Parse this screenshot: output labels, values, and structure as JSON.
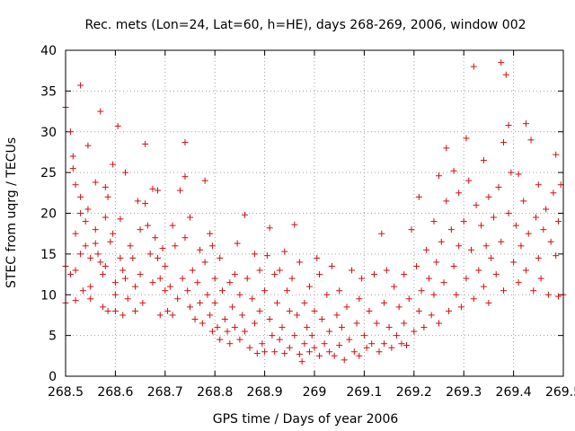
{
  "chart_data": {
    "type": "scatter",
    "title": "Rec. mets (Lon=24, Lat=60, h=HE), days 268-269, 2006, window 002",
    "xlabel": "GPS time / Days of year 2006",
    "ylabel": "STEC from uqrg / TECUs",
    "xlim": [
      268.5,
      269.5
    ],
    "ylim": [
      0,
      40
    ],
    "grid": true,
    "marker": "+",
    "marker_color": "#d01010",
    "x_ticks": [
      {
        "value": 268.5,
        "label": "268.5"
      },
      {
        "value": 268.6,
        "label": "268.6"
      },
      {
        "value": 268.7,
        "label": "268.7"
      },
      {
        "value": 268.8,
        "label": "268.8"
      },
      {
        "value": 268.9,
        "label": "268.9"
      },
      {
        "value": 269.0,
        "label": "269"
      },
      {
        "value": 269.1,
        "label": "269.1"
      },
      {
        "value": 269.2,
        "label": "269.2"
      },
      {
        "value": 269.3,
        "label": "269.3"
      },
      {
        "value": 269.4,
        "label": "269.4"
      },
      {
        "value": 269.5,
        "label": "269.5"
      }
    ],
    "y_ticks": [
      {
        "value": 0,
        "label": "0"
      },
      {
        "value": 5,
        "label": "5"
      },
      {
        "value": 10,
        "label": "10"
      },
      {
        "value": 15,
        "label": "15"
      },
      {
        "value": 20,
        "label": "20"
      },
      {
        "value": 25,
        "label": "25"
      },
      {
        "value": 30,
        "label": "30"
      },
      {
        "value": 35,
        "label": "35"
      },
      {
        "value": 40,
        "label": "40"
      }
    ],
    "series": [
      {
        "name": "STEC",
        "points": [
          [
            268.5,
            33.0
          ],
          [
            268.5,
            13.5
          ],
          [
            268.5,
            9.0
          ],
          [
            268.51,
            30.0
          ],
          [
            268.51,
            12.5
          ],
          [
            268.515,
            27.0
          ],
          [
            268.515,
            25.5
          ],
          [
            268.52,
            23.5
          ],
          [
            268.52,
            17.5
          ],
          [
            268.52,
            13.0
          ],
          [
            268.52,
            9.3
          ],
          [
            268.53,
            35.7
          ],
          [
            268.53,
            22.0
          ],
          [
            268.53,
            20.0
          ],
          [
            268.53,
            15.0
          ],
          [
            268.535,
            10.5
          ],
          [
            268.54,
            19.0
          ],
          [
            268.54,
            16.0
          ],
          [
            268.545,
            28.3
          ],
          [
            268.545,
            20.5
          ],
          [
            268.55,
            14.5
          ],
          [
            268.55,
            11.0
          ],
          [
            268.55,
            9.5
          ],
          [
            268.56,
            23.8
          ],
          [
            268.56,
            18.0
          ],
          [
            268.56,
            16.3
          ],
          [
            268.565,
            15.0
          ],
          [
            268.57,
            32.5
          ],
          [
            268.57,
            14.0
          ],
          [
            268.575,
            12.5
          ],
          [
            268.575,
            8.5
          ],
          [
            268.58,
            23.2
          ],
          [
            268.58,
            19.5
          ],
          [
            268.58,
            13.5
          ],
          [
            268.585,
            22.0
          ],
          [
            268.585,
            8.0
          ],
          [
            268.59,
            16.5
          ],
          [
            268.595,
            26.0
          ],
          [
            268.595,
            17.5
          ],
          [
            268.6,
            11.5
          ],
          [
            268.6,
            10.0
          ],
          [
            268.6,
            8.0
          ],
          [
            268.605,
            30.7
          ],
          [
            268.61,
            19.3
          ],
          [
            268.61,
            14.5
          ],
          [
            268.615,
            13.0
          ],
          [
            268.615,
            7.5
          ],
          [
            268.62,
            25.0
          ],
          [
            268.62,
            12.0
          ],
          [
            268.625,
            9.5
          ],
          [
            268.63,
            16.0
          ],
          [
            268.635,
            14.5
          ],
          [
            268.64,
            11.0
          ],
          [
            268.64,
            8.0
          ],
          [
            268.645,
            21.5
          ],
          [
            268.65,
            18.0
          ],
          [
            268.65,
            12.5
          ],
          [
            268.655,
            9.0
          ],
          [
            268.66,
            28.5
          ],
          [
            268.66,
            21.2
          ],
          [
            268.665,
            18.5
          ],
          [
            268.67,
            15.0
          ],
          [
            268.675,
            23.0
          ],
          [
            268.675,
            11.5
          ],
          [
            268.68,
            17.0
          ],
          [
            268.685,
            22.8
          ],
          [
            268.685,
            14.5
          ],
          [
            268.69,
            12.0
          ],
          [
            268.69,
            7.5
          ],
          [
            268.695,
            15.7
          ],
          [
            268.7,
            13.5
          ],
          [
            268.7,
            10.5
          ],
          [
            268.705,
            8.0
          ],
          [
            268.71,
            11.0
          ],
          [
            268.715,
            18.5
          ],
          [
            268.715,
            7.5
          ],
          [
            268.72,
            16.0
          ],
          [
            268.725,
            9.5
          ],
          [
            268.73,
            22.8
          ],
          [
            268.735,
            12.0
          ],
          [
            268.74,
            28.7
          ],
          [
            268.74,
            24.5
          ],
          [
            268.74,
            17.0
          ],
          [
            268.745,
            10.5
          ],
          [
            268.75,
            19.5
          ],
          [
            268.75,
            8.5
          ],
          [
            268.755,
            13.0
          ],
          [
            268.76,
            7.0
          ],
          [
            268.765,
            11.5
          ],
          [
            268.77,
            15.5
          ],
          [
            268.77,
            9.0
          ],
          [
            268.775,
            6.5
          ],
          [
            268.78,
            24.0
          ],
          [
            268.78,
            14.0
          ],
          [
            268.785,
            10.0
          ],
          [
            268.79,
            17.5
          ],
          [
            268.79,
            7.5
          ],
          [
            268.795,
            16.0
          ],
          [
            268.795,
            5.5
          ],
          [
            268.8,
            12.0
          ],
          [
            268.8,
            9.0
          ],
          [
            268.805,
            6.0
          ],
          [
            268.81,
            14.5
          ],
          [
            268.81,
            4.5
          ],
          [
            268.815,
            10.5
          ],
          [
            268.82,
            7.0
          ],
          [
            268.825,
            5.5
          ],
          [
            268.83,
            11.5
          ],
          [
            268.83,
            4.0
          ],
          [
            268.835,
            8.5
          ],
          [
            268.84,
            12.5
          ],
          [
            268.84,
            6.0
          ],
          [
            268.845,
            16.3
          ],
          [
            268.85,
            10.0
          ],
          [
            268.85,
            4.5
          ],
          [
            268.855,
            7.5
          ],
          [
            268.86,
            19.8
          ],
          [
            268.86,
            5.5
          ],
          [
            268.865,
            12.0
          ],
          [
            268.87,
            3.5
          ],
          [
            268.875,
            9.5
          ],
          [
            268.88,
            15.0
          ],
          [
            268.88,
            6.5
          ],
          [
            268.885,
            2.8
          ],
          [
            268.89,
            13.0
          ],
          [
            268.89,
            8.0
          ],
          [
            268.895,
            4.0
          ],
          [
            268.9,
            10.5
          ],
          [
            268.9,
            3.0
          ],
          [
            268.905,
            14.8
          ],
          [
            268.91,
            18.2
          ],
          [
            268.91,
            7.0
          ],
          [
            268.915,
            5.0
          ],
          [
            268.92,
            12.5
          ],
          [
            268.92,
            3.0
          ],
          [
            268.925,
            9.0
          ],
          [
            268.93,
            13.0
          ],
          [
            268.93,
            4.5
          ],
          [
            268.935,
            6.0
          ],
          [
            268.94,
            15.3
          ],
          [
            268.94,
            2.8
          ],
          [
            268.945,
            10.5
          ],
          [
            268.95,
            8.0
          ],
          [
            268.95,
            3.5
          ],
          [
            268.955,
            12.0
          ],
          [
            268.96,
            5.0
          ],
          [
            268.96,
            18.6
          ],
          [
            268.965,
            7.5
          ],
          [
            268.97,
            14.0
          ],
          [
            268.97,
            2.7
          ],
          [
            268.975,
            1.8
          ],
          [
            268.98,
            9.0
          ],
          [
            268.98,
            4.0
          ],
          [
            268.985,
            6.0
          ],
          [
            268.99,
            11.0
          ],
          [
            268.99,
            3.0
          ],
          [
            268.995,
            5.0
          ],
          [
            269.0,
            8.0
          ],
          [
            269.0,
            3.5
          ],
          [
            269.005,
            14.5
          ],
          [
            269.01,
            12.5
          ],
          [
            269.01,
            2.5
          ],
          [
            269.015,
            7.0
          ],
          [
            269.02,
            4.0
          ],
          [
            269.025,
            10.0
          ],
          [
            269.03,
            5.5
          ],
          [
            269.03,
            3.0
          ],
          [
            269.035,
            13.5
          ],
          [
            269.04,
            2.5
          ],
          [
            269.045,
            7.5
          ],
          [
            269.05,
            10.5
          ],
          [
            269.05,
            3.8
          ],
          [
            269.055,
            6.0
          ],
          [
            269.06,
            2.0
          ],
          [
            269.065,
            8.5
          ],
          [
            269.07,
            4.5
          ],
          [
            269.075,
            13.0
          ],
          [
            269.08,
            3.0
          ],
          [
            269.085,
            6.5
          ],
          [
            269.09,
            9.5
          ],
          [
            269.09,
            2.5
          ],
          [
            269.095,
            12.0
          ],
          [
            269.1,
            5.0
          ],
          [
            269.105,
            3.5
          ],
          [
            269.11,
            8.0
          ],
          [
            269.115,
            4.0
          ],
          [
            269.12,
            12.5
          ],
          [
            269.125,
            6.5
          ],
          [
            269.13,
            3.0
          ],
          [
            269.135,
            17.5
          ],
          [
            269.14,
            9.0
          ],
          [
            269.14,
            4.0
          ],
          [
            269.145,
            13.0
          ],
          [
            269.15,
            6.0
          ],
          [
            269.155,
            3.5
          ],
          [
            269.16,
            11.0
          ],
          [
            269.165,
            5.0
          ],
          [
            269.17,
            8.5
          ],
          [
            269.175,
            4.0
          ],
          [
            269.18,
            12.5
          ],
          [
            269.18,
            6.5
          ],
          [
            269.185,
            3.8
          ],
          [
            269.19,
            9.5
          ],
          [
            269.195,
            18.0
          ],
          [
            269.2,
            5.5
          ],
          [
            269.205,
            13.5
          ],
          [
            269.21,
            22.0
          ],
          [
            269.21,
            8.0
          ],
          [
            269.215,
            10.5
          ],
          [
            269.22,
            6.0
          ],
          [
            269.225,
            15.5
          ],
          [
            269.23,
            12.0
          ],
          [
            269.235,
            7.5
          ],
          [
            269.24,
            19.0
          ],
          [
            269.24,
            10.0
          ],
          [
            269.245,
            14.0
          ],
          [
            269.25,
            24.6
          ],
          [
            269.25,
            6.5
          ],
          [
            269.255,
            16.5
          ],
          [
            269.26,
            11.5
          ],
          [
            269.265,
            28.0
          ],
          [
            269.265,
            21.5
          ],
          [
            269.27,
            8.0
          ],
          [
            269.275,
            18.0
          ],
          [
            269.28,
            25.2
          ],
          [
            269.28,
            13.5
          ],
          [
            269.285,
            10.0
          ],
          [
            269.29,
            22.5
          ],
          [
            269.29,
            16.0
          ],
          [
            269.295,
            8.5
          ],
          [
            269.3,
            19.0
          ],
          [
            269.305,
            29.2
          ],
          [
            269.305,
            12.0
          ],
          [
            269.31,
            24.0
          ],
          [
            269.315,
            15.5
          ],
          [
            269.32,
            38.0
          ],
          [
            269.32,
            9.5
          ],
          [
            269.325,
            21.0
          ],
          [
            269.33,
            13.0
          ],
          [
            269.335,
            18.5
          ],
          [
            269.34,
            26.5
          ],
          [
            269.34,
            11.0
          ],
          [
            269.345,
            16.0
          ],
          [
            269.35,
            22.0
          ],
          [
            269.35,
            9.0
          ],
          [
            269.355,
            14.5
          ],
          [
            269.36,
            19.5
          ],
          [
            269.365,
            12.5
          ],
          [
            269.37,
            23.2
          ],
          [
            269.375,
            38.5
          ],
          [
            269.375,
            16.5
          ],
          [
            269.38,
            28.7
          ],
          [
            269.38,
            10.5
          ],
          [
            269.385,
            37.0
          ],
          [
            269.39,
            30.8
          ],
          [
            269.39,
            20.0
          ],
          [
            269.395,
            25.0
          ],
          [
            269.4,
            14.0
          ],
          [
            269.405,
            18.5
          ],
          [
            269.41,
            24.8
          ],
          [
            269.41,
            11.5
          ],
          [
            269.415,
            16.0
          ],
          [
            269.42,
            21.5
          ],
          [
            269.425,
            31.0
          ],
          [
            269.425,
            13.0
          ],
          [
            269.43,
            17.5
          ],
          [
            269.435,
            29.0
          ],
          [
            269.44,
            10.5
          ],
          [
            269.445,
            19.5
          ],
          [
            269.45,
            23.5
          ],
          [
            269.45,
            14.5
          ],
          [
            269.455,
            12.0
          ],
          [
            269.46,
            18.0
          ],
          [
            269.465,
            20.5
          ],
          [
            269.47,
            10.0
          ],
          [
            269.475,
            16.5
          ],
          [
            269.48,
            22.5
          ],
          [
            269.485,
            27.2
          ],
          [
            269.485,
            14.8
          ],
          [
            269.49,
            9.8
          ],
          [
            269.49,
            19.0
          ],
          [
            269.495,
            23.5
          ],
          [
            269.5,
            10.0
          ]
        ]
      }
    ]
  }
}
